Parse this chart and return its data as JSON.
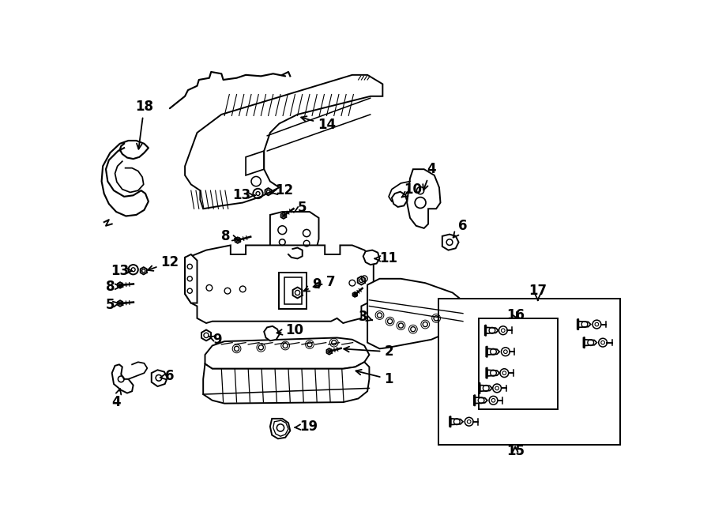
{
  "background": "#ffffff",
  "lw": 1.4,
  "color": "black",
  "fig_w": 9.0,
  "fig_h": 6.62,
  "dpi": 100
}
